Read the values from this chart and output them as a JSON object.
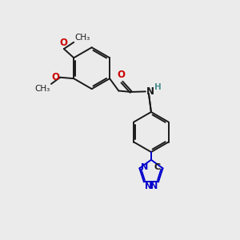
{
  "bg_color": "#ebebeb",
  "bond_color": "#1a1a1a",
  "bond_width": 1.4,
  "atom_colors": {
    "O": "#cc0000",
    "N": "#0000cc",
    "H": "#4a9090",
    "C": "#1a1a1a"
  },
  "font_size": 8.5,
  "font_size_small": 7.5
}
